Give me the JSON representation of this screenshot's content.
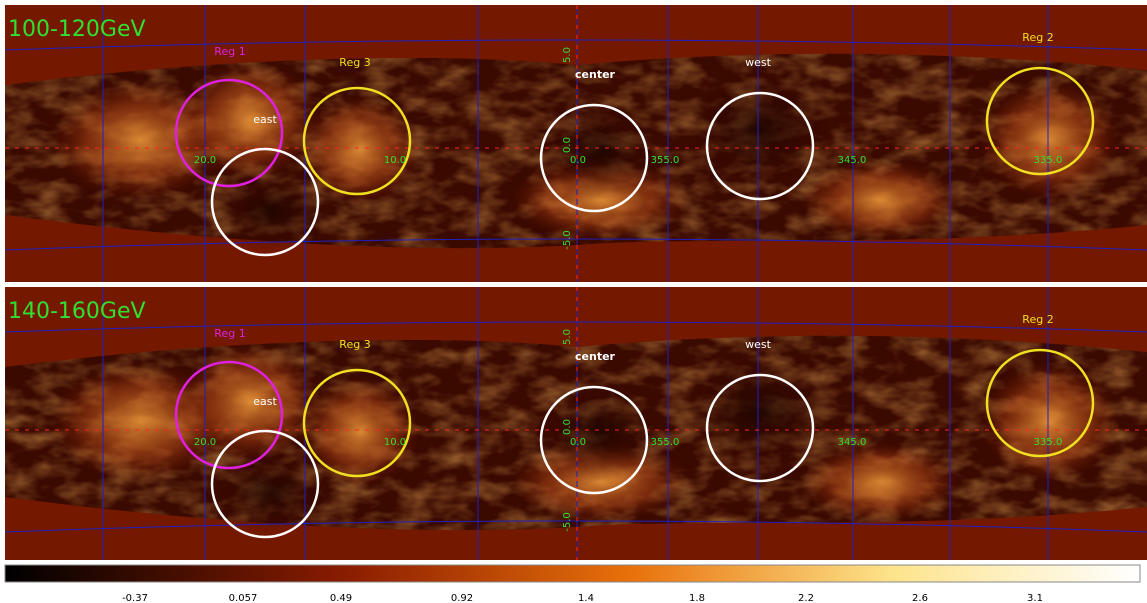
{
  "panels": [
    {
      "title": "100-120GeV",
      "regions": [
        "Reg 1",
        "Reg 3",
        "Reg 2"
      ],
      "markers": [
        "east",
        "center",
        "west"
      ],
      "lon_labels": [
        "20.0",
        "10.0",
        "0.0",
        "355.0",
        "345.0",
        "335.0"
      ],
      "lat_labels": [
        "5.0",
        "0.0",
        "-5.0"
      ]
    },
    {
      "title": "140-160GeV",
      "regions": [
        "Reg 1",
        "Reg 3",
        "Reg 2"
      ],
      "markers": [
        "east",
        "center",
        "west"
      ],
      "lon_labels": [
        "20.0",
        "10.0",
        "0.0",
        "355.0",
        "345.0",
        "335.0"
      ],
      "lat_labels": [
        "5.0",
        "0.0",
        "-5.0"
      ]
    }
  ],
  "colorbar": {
    "labels": [
      "-0.37",
      "0.057",
      "0.49",
      "0.92",
      "1.4",
      "1.8",
      "2.2",
      "2.6",
      "3.1"
    ]
  }
}
